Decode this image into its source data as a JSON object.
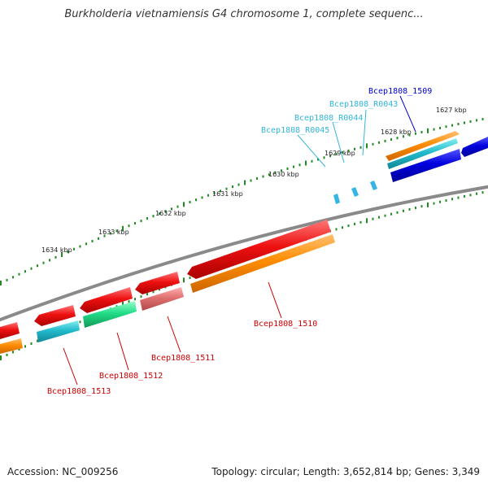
{
  "title": "Burkholderia vietnamiensis G4 chromosome 1, complete sequenc...",
  "footer": {
    "accession": "Accession: NC_009256",
    "summary": "Topology: circular; Length: 3,652,814 bp; Genes: 3,349"
  },
  "ticks": [
    "1627 kbp",
    "1628 kbp",
    "1629 kbp",
    "1630 kbp",
    "1631 kbp",
    "1632 kbp",
    "1633 kbp",
    "1634 kbp"
  ],
  "genes": [
    {
      "name": "Bcep1808_1509",
      "color": "#0000cc"
    },
    {
      "name": "Bcep1808_R0043",
      "color": "#33b5d9"
    },
    {
      "name": "Bcep1808_R0044",
      "color": "#33b5d9"
    },
    {
      "name": "Bcep1808_R0045",
      "color": "#33b5d9"
    },
    {
      "name": "Bcep1808_1510",
      "color": "#cc0000"
    },
    {
      "name": "Bcep1808_1511",
      "color": "#cc0000"
    },
    {
      "name": "Bcep1808_1512",
      "color": "#cc0000"
    },
    {
      "name": "Bcep1808_1513",
      "color": "#cc0000"
    }
  ],
  "colors": {
    "backbone": "#808080",
    "cds_red": "#ee1111",
    "gene_orange": "#ff8c00",
    "gene_cyan": "#22bbcc",
    "gene_blue": "#0000dd",
    "gene_green": "#22dd88",
    "gene_pink": "#e07070",
    "rna": "#33b5e5",
    "tick_green": "#228b22"
  }
}
